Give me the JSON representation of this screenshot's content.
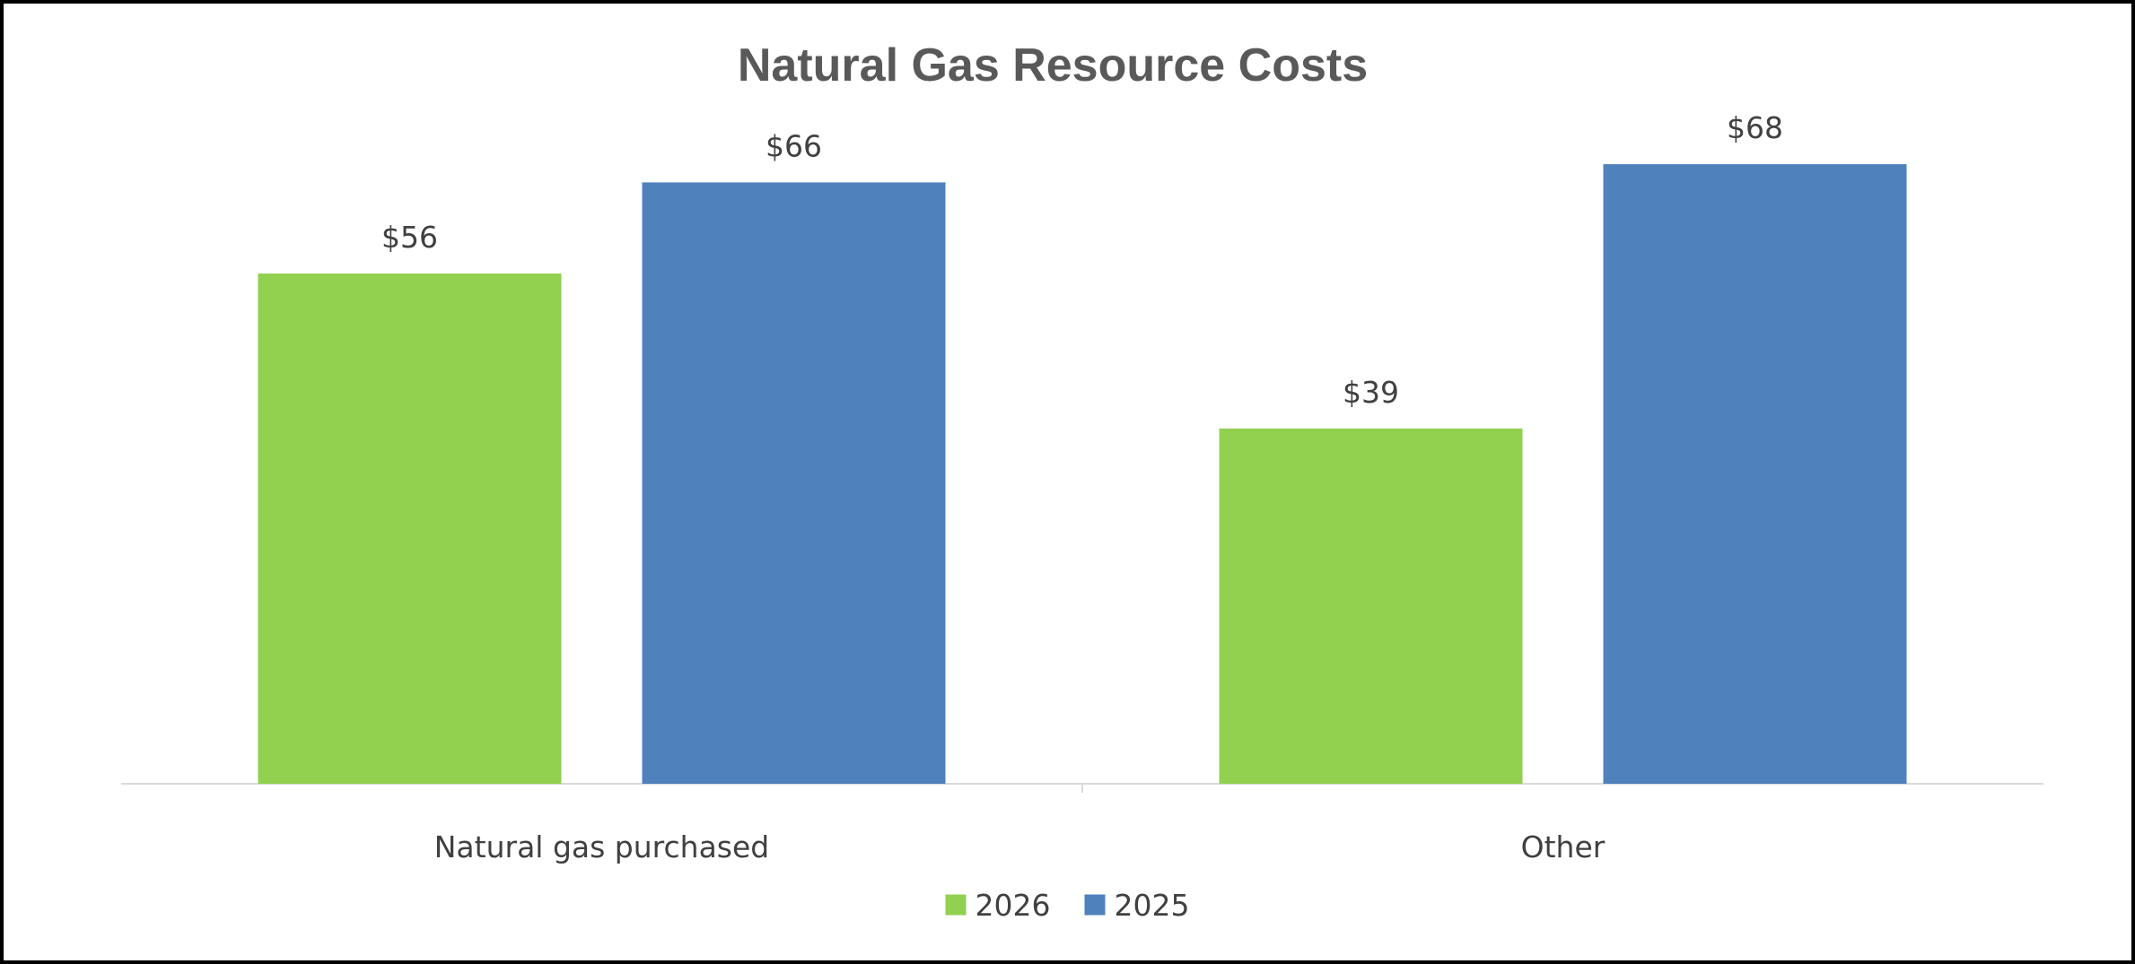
{
  "chart_data": {
    "type": "bar",
    "title": "Natural Gas Resource Costs",
    "categories": [
      "Natural gas purchased",
      "Other"
    ],
    "series": [
      {
        "name": "2026",
        "values": [
          56,
          39
        ],
        "labels": [
          "$56",
          "$39"
        ],
        "color": "#92d050"
      },
      {
        "name": "2025",
        "values": [
          66,
          68
        ],
        "labels": [
          "$66",
          "$68"
        ],
        "color": "#4f81bd"
      }
    ],
    "ylim": [
      0,
      70
    ],
    "grid": false,
    "legend": "bottom"
  }
}
